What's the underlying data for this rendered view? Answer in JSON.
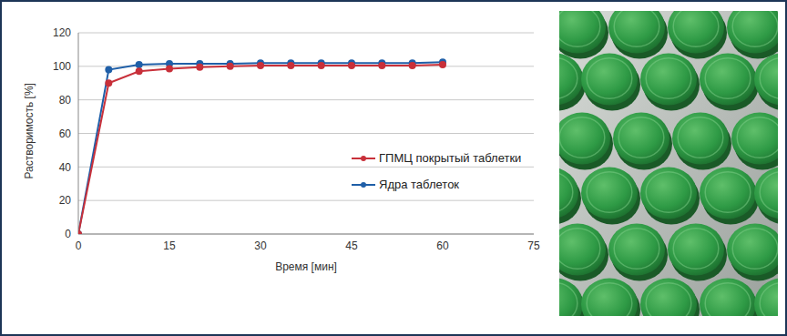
{
  "chart_data": {
    "type": "line",
    "x_label": "Время [мин]",
    "y_label": "Растворимость [%]",
    "x": [
      0,
      5,
      10,
      15,
      20,
      25,
      30,
      35,
      40,
      45,
      50,
      55,
      60
    ],
    "series": [
      {
        "name": "Ядра таблеток",
        "color": "#1f5fa8",
        "marker": "circle",
        "values": [
          0,
          98,
          101,
          101.5,
          101.5,
          101.5,
          102,
          102,
          102,
          102,
          102,
          102,
          102.5
        ]
      },
      {
        "name": "ГПМЦ покрытый таблетки",
        "color": "#c8303a",
        "marker": "circle",
        "values": [
          0,
          90,
          97,
          98.5,
          99.5,
          100,
          100.5,
          100.5,
          100.5,
          100.5,
          100.5,
          100.5,
          101
        ]
      }
    ],
    "xlim": [
      0,
      75
    ],
    "xticks": [
      0,
      15,
      30,
      45,
      60,
      75
    ],
    "ylim": [
      0,
      120
    ],
    "yticks": [
      0,
      20,
      40,
      60,
      80,
      100,
      120
    ],
    "grid": true,
    "legend": "right"
  }
}
